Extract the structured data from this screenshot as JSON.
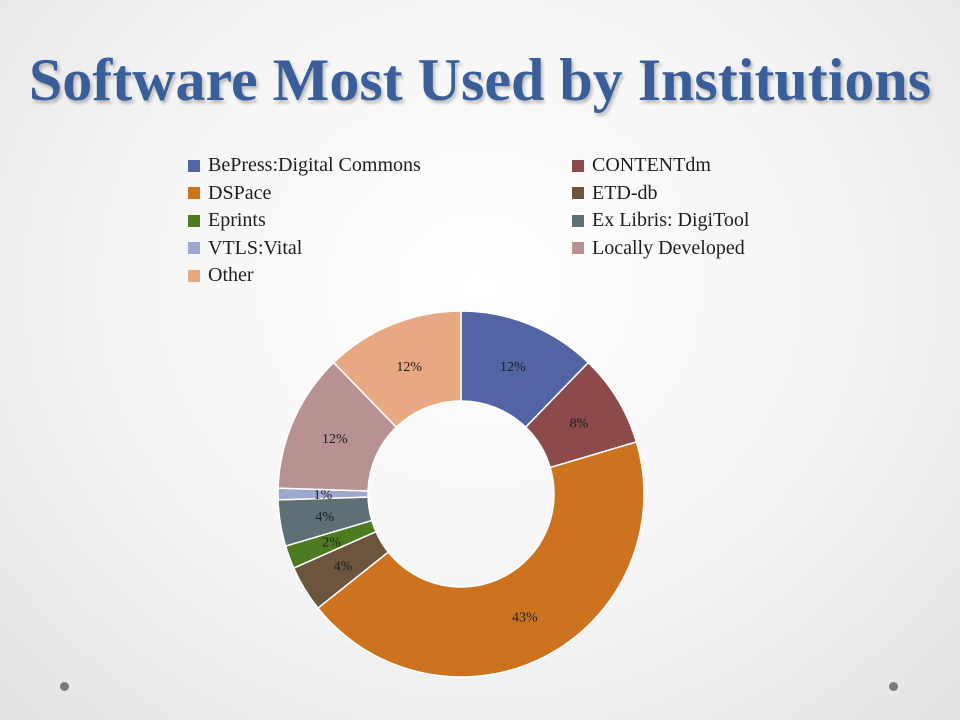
{
  "slide": {
    "title": "Software Most Used by Institutions"
  },
  "chart_data": {
    "type": "pie",
    "title": "Software Most Used by Institutions",
    "categories": [
      "BePress:Digital Commons",
      "CONTENTdm",
      "DSPace",
      "ETD-db",
      "Eprints",
      "Ex Libris: DigiTool",
      "VTLS:Vital",
      "Locally Developed",
      "Other"
    ],
    "values": [
      12,
      8,
      43,
      4,
      2,
      4,
      1,
      12,
      12
    ],
    "value_labels": [
      "12%",
      "8%",
      "43%",
      "4%",
      "2%",
      "4%",
      "1%",
      "12%",
      "12%"
    ],
    "colors": [
      "#5264a3",
      "#8c4a4a",
      "#cd731f",
      "#6b553f",
      "#4e7a22",
      "#5f6f76",
      "#9da8cf",
      "#b89292",
      "#e8a882"
    ],
    "donut": true,
    "legend_position": "top"
  }
}
